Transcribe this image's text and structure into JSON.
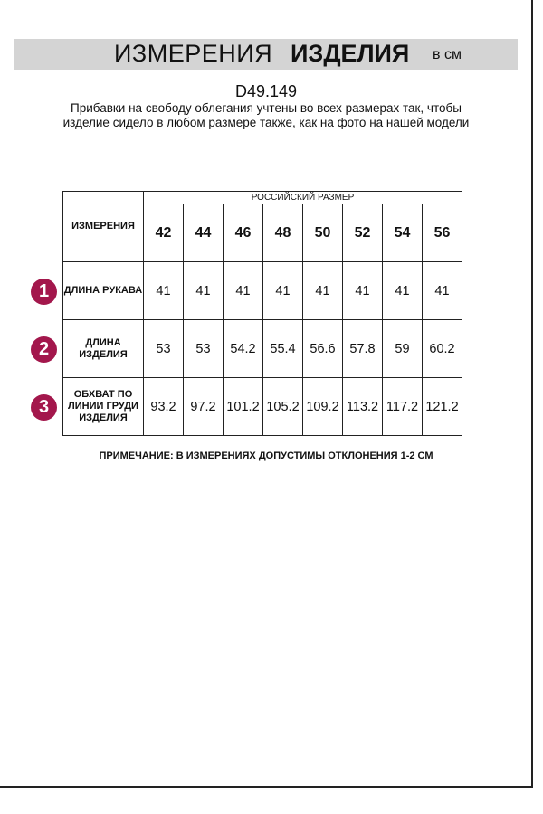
{
  "header": {
    "title_regular": "ИЗМЕРЕНИЯ",
    "title_bold": "ИЗДЕЛИЯ",
    "unit": "в см"
  },
  "article": "D49.149",
  "description": "Прибавки на свободу облегания учтены во всех размерах так, чтобы изделие сидело в любом размере также, как на фото на нашей модели",
  "table": {
    "measure_header": "ИЗМЕРЕНИЯ",
    "size_group_header": "РОССИЙСКИЙ РАЗМЕР",
    "sizes": [
      "42",
      "44",
      "46",
      "48",
      "50",
      "52",
      "54",
      "56"
    ],
    "rows": [
      {
        "number": "1",
        "label": "ДЛИНА РУКАВА",
        "values": [
          "41",
          "41",
          "41",
          "41",
          "41",
          "41",
          "41",
          "41"
        ]
      },
      {
        "number": "2",
        "label": "ДЛИНА ИЗДЕЛИЯ",
        "values": [
          "53",
          "53",
          "54.2",
          "55.4",
          "56.6",
          "57.8",
          "59",
          "60.2"
        ]
      },
      {
        "number": "3",
        "label": "ОБХВАТ ПО ЛИНИИ ГРУДИ ИЗДЕЛИЯ",
        "values": [
          "93.2",
          "97.2",
          "101.2",
          "105.2",
          "109.2",
          "113.2",
          "117.2",
          "121.2"
        ]
      }
    ]
  },
  "note": "ПРИМЕЧАНИЕ: В ИЗМЕРЕНИЯХ ДОПУСТИМЫ ОТКЛОНЕНИЯ 1-2 СМ",
  "colors": {
    "badge": "#a3174c",
    "banner": "#d4d4d4"
  }
}
